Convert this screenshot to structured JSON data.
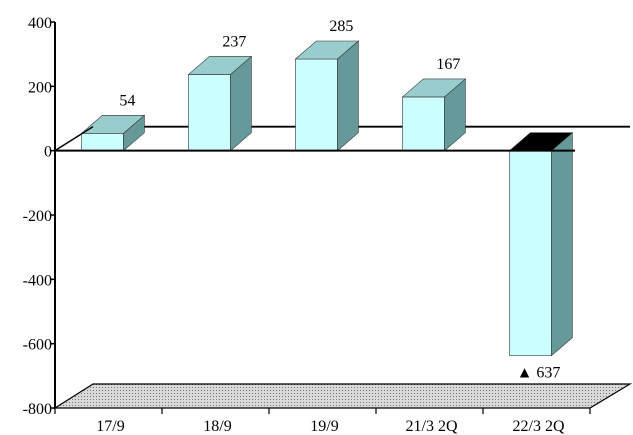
{
  "chart_data": {
    "type": "bar",
    "style": "3d",
    "title": "",
    "xlabel": "",
    "ylabel": "",
    "categories": [
      "17/9",
      "18/9",
      "19/9",
      "21/3 2Q",
      "22/3 2Q"
    ],
    "values": [
      54,
      237,
      285,
      167,
      -637
    ],
    "value_labels": [
      "54",
      "237",
      "285",
      "167",
      "▲ 637"
    ],
    "ylim": [
      -800,
      400
    ],
    "yticks": [
      400,
      200,
      0,
      -200,
      -400,
      -600,
      -800
    ],
    "ytick_labels": [
      "400",
      "200",
      "0",
      "-200",
      "-400",
      "-600",
      "-800"
    ],
    "grid": false,
    "legend": "none",
    "colors": {
      "bar_front": "#ccffff",
      "bar_top": "#99cccc",
      "bar_side": "#669999",
      "negative_top": "#000000",
      "floor": "#c0c0c0",
      "axis": "#000000"
    }
  }
}
